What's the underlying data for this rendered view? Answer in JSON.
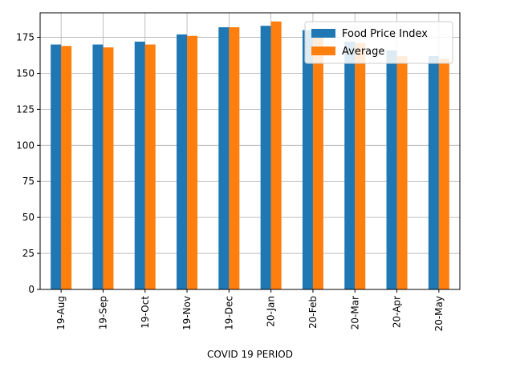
{
  "chart_data": {
    "type": "bar",
    "categories": [
      "19-Aug",
      "19-Sep",
      "19-Oct",
      "19-Nov",
      "19-Dec",
      "20-Jan",
      "20-Feb",
      "20-Mar",
      "20-Apr",
      "20-May"
    ],
    "series": [
      {
        "name": "Food Price Index",
        "color": "#1f77b4",
        "values": [
          170,
          170,
          172,
          177,
          182,
          183,
          180,
          172,
          166,
          162
        ]
      },
      {
        "name": "Average",
        "color": "#ff7f0e",
        "values": [
          169,
          168,
          170,
          176,
          182,
          186,
          180,
          171,
          162,
          160
        ]
      }
    ],
    "title": "",
    "xlabel": "COVID 19 PERIOD",
    "ylabel": "",
    "ylim": [
      0,
      192
    ],
    "yticks": [
      0,
      25,
      50,
      75,
      100,
      125,
      150,
      175
    ],
    "grid": true,
    "legend": "top-right"
  }
}
